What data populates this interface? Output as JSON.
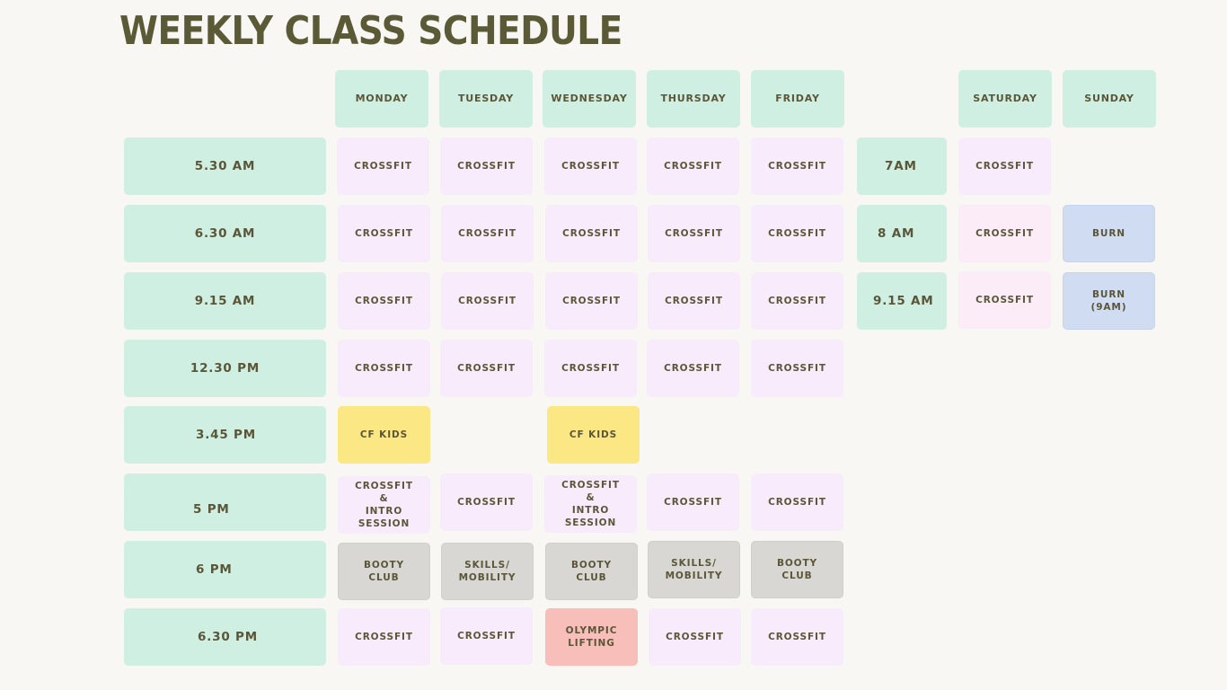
{
  "title": "WEEKLY CLASS SCHEDULE",
  "days": {
    "monday": "MONDAY",
    "tuesday": "TUESDAY",
    "wednesday": "WEDNESDAY",
    "thursday": "THURSDAY",
    "friday": "FRIDAY",
    "saturday": "SATURDAY",
    "sunday": "SUNDAY"
  },
  "weekday_times": [
    "5.30 AM",
    "6.30 AM",
    "9.15 AM",
    "12.30 PM",
    "3.45 PM",
    "5 PM",
    "6 PM",
    "6.30 PM"
  ],
  "weekend_times": [
    "7AM",
    "8 AM",
    "9.15 AM"
  ],
  "weekday_classes": [
    [
      "CROSSFIT",
      "CROSSFIT",
      "CROSSFIT",
      "CROSSFIT",
      "CROSSFIT"
    ],
    [
      "CROSSFIT",
      "CROSSFIT",
      "CROSSFIT",
      "CROSSFIT",
      "CROSSFIT"
    ],
    [
      "CROSSFIT",
      "CROSSFIT",
      "CROSSFIT",
      "CROSSFIT",
      "CROSSFIT"
    ],
    [
      "CROSSFIT",
      "CROSSFIT",
      "CROSSFIT",
      "CROSSFIT",
      "CROSSFIT"
    ],
    [
      "CF KIDS",
      "",
      "CF KIDS",
      "",
      ""
    ],
    [
      "CROSSFIT\n&\nINTRO\nSESSION",
      "CROSSFIT",
      "CROSSFIT\n&\nINTRO\nSESSION",
      "CROSSFIT",
      "CROSSFIT"
    ],
    [
      "BOOTY\nCLUB",
      "SKILLS/\nMOBILITY",
      "BOOTY\nCLUB",
      "SKILLS/\nMOBILITY",
      "BOOTY\nCLUB"
    ],
    [
      "CROSSFIT",
      "CROSSFIT",
      "OLYMPIC\nLIFTING",
      "CROSSFIT",
      "CROSSFIT"
    ]
  ],
  "saturday_classes": [
    "CROSSFIT",
    "CROSSFIT",
    "CROSSFIT"
  ],
  "sunday_classes": [
    "",
    "BURN",
    "BURN\n(9AM)"
  ],
  "colors": {
    "background": "#f9f7f3",
    "header_green": "#cfefe2",
    "crossfit_pink": "#f8ecfc",
    "kids_yellow": "#fbe783",
    "burn_blue": "#cfdcf2",
    "grey": "#d8d7d4",
    "olympic_red": "#f7beba",
    "text": "#5b5637"
  }
}
